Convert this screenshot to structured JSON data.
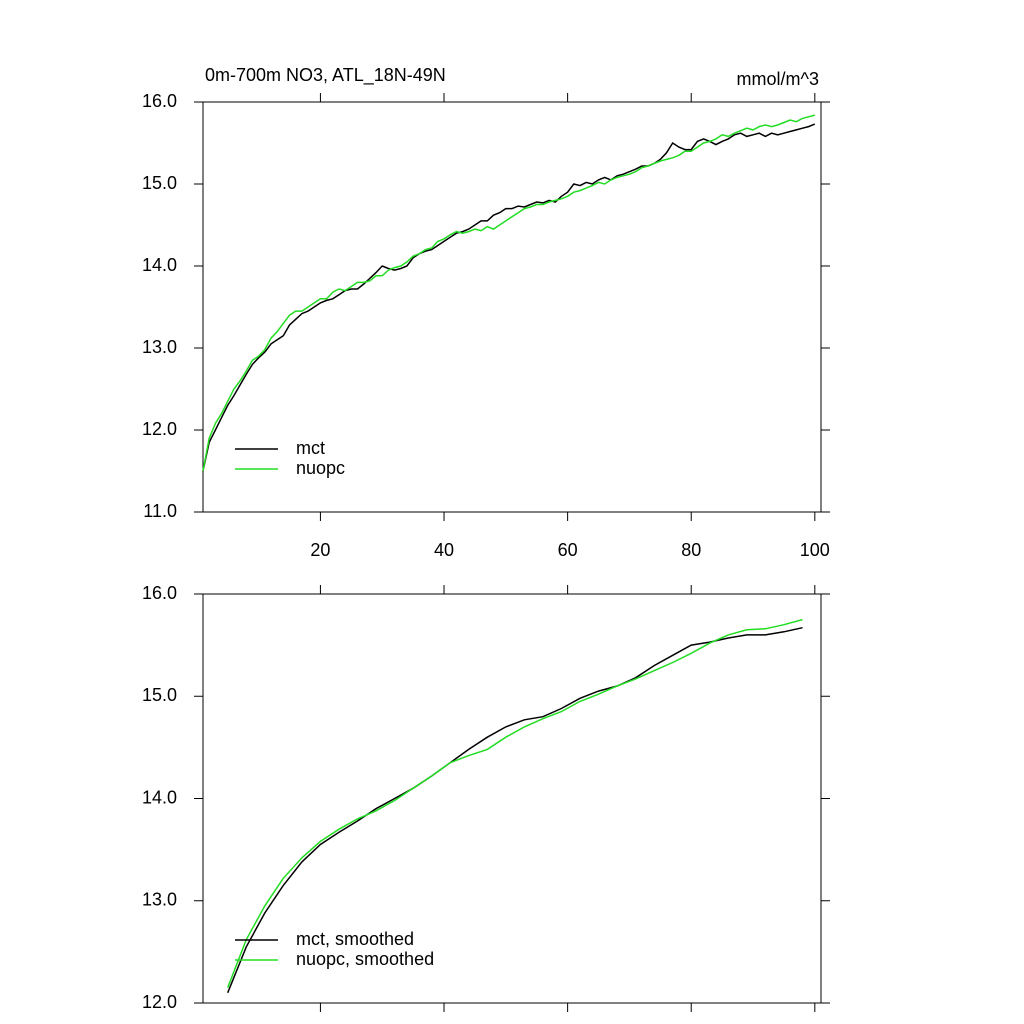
{
  "chart_data": [
    {
      "type": "line",
      "title": "0m-700m NO3, ATL_18N-49N",
      "units": "mmol/m^3",
      "x": [
        1,
        2,
        3,
        4,
        5,
        6,
        7,
        8,
        9,
        10,
        11,
        12,
        13,
        14,
        15,
        16,
        17,
        18,
        19,
        20,
        21,
        22,
        23,
        24,
        25,
        26,
        27,
        28,
        29,
        30,
        31,
        32,
        33,
        34,
        35,
        36,
        37,
        38,
        39,
        40,
        41,
        42,
        43,
        44,
        45,
        46,
        47,
        48,
        49,
        50,
        51,
        52,
        53,
        54,
        55,
        56,
        57,
        58,
        59,
        60,
        61,
        62,
        63,
        64,
        65,
        66,
        67,
        68,
        69,
        70,
        71,
        72,
        73,
        74,
        75,
        76,
        77,
        78,
        79,
        80,
        81,
        82,
        83,
        84,
        85,
        86,
        87,
        88,
        89,
        90,
        91,
        92,
        93,
        94,
        95,
        96,
        97,
        98,
        99,
        100
      ],
      "series": [
        {
          "name": "mct",
          "color": "#000000",
          "values": [
            11.5,
            11.85,
            12.0,
            12.15,
            12.3,
            12.42,
            12.55,
            12.68,
            12.8,
            12.88,
            12.95,
            13.05,
            13.1,
            13.15,
            13.28,
            13.35,
            13.42,
            13.45,
            13.5,
            13.55,
            13.58,
            13.6,
            13.65,
            13.7,
            13.72,
            13.72,
            13.78,
            13.85,
            13.92,
            14.0,
            13.97,
            13.95,
            13.97,
            14.0,
            14.1,
            14.15,
            14.18,
            14.2,
            14.25,
            14.3,
            14.35,
            14.4,
            14.42,
            14.45,
            14.5,
            14.55,
            14.55,
            14.62,
            14.65,
            14.7,
            14.7,
            14.73,
            14.72,
            14.75,
            14.78,
            14.77,
            14.8,
            14.78,
            14.85,
            14.9,
            15.0,
            14.98,
            15.02,
            15.0,
            15.05,
            15.08,
            15.05,
            15.1,
            15.12,
            15.15,
            15.18,
            15.22,
            15.22,
            15.25,
            15.3,
            15.38,
            15.5,
            15.45,
            15.42,
            15.42,
            15.52,
            15.55,
            15.52,
            15.48,
            15.52,
            15.55,
            15.6,
            15.62,
            15.58,
            15.6,
            15.62,
            15.58,
            15.62,
            15.6,
            15.62,
            15.64,
            15.66,
            15.68,
            15.7,
            15.73
          ]
        },
        {
          "name": "nuopc",
          "color": "#22dd22",
          "values": [
            11.5,
            11.9,
            12.08,
            12.2,
            12.35,
            12.5,
            12.6,
            12.72,
            12.85,
            12.9,
            12.98,
            13.12,
            13.2,
            13.3,
            13.4,
            13.45,
            13.45,
            13.5,
            13.55,
            13.6,
            13.6,
            13.68,
            13.72,
            13.7,
            13.75,
            13.8,
            13.8,
            13.82,
            13.88,
            13.88,
            13.95,
            13.98,
            14.0,
            14.05,
            14.12,
            14.15,
            14.2,
            14.22,
            14.3,
            14.33,
            14.38,
            14.42,
            14.4,
            14.42,
            14.45,
            14.43,
            14.48,
            14.45,
            14.5,
            14.55,
            14.6,
            14.65,
            14.7,
            14.72,
            14.75,
            14.75,
            14.78,
            14.8,
            14.82,
            14.85,
            14.9,
            14.92,
            14.95,
            14.98,
            15.02,
            15.0,
            15.05,
            15.08,
            15.1,
            15.12,
            15.15,
            15.2,
            15.22,
            15.25,
            15.28,
            15.3,
            15.32,
            15.35,
            15.4,
            15.4,
            15.45,
            15.5,
            15.52,
            15.55,
            15.6,
            15.58,
            15.62,
            15.65,
            15.68,
            15.66,
            15.7,
            15.72,
            15.7,
            15.72,
            15.75,
            15.78,
            15.76,
            15.8,
            15.82,
            15.84
          ]
        }
      ],
      "xlim": [
        1,
        101
      ],
      "xticks": [
        20,
        40,
        60,
        80,
        100
      ],
      "xticklabels": true,
      "ylim": [
        11,
        16
      ],
      "yticks": [
        {
          "value": 11,
          "label": "11.0"
        },
        {
          "value": 12,
          "label": "12.0"
        },
        {
          "value": 13,
          "label": "13.0"
        },
        {
          "value": 14,
          "label": "14.0"
        },
        {
          "value": 15,
          "label": "15.0"
        },
        {
          "value": 16,
          "label": "16.0"
        }
      ],
      "legend": "lower left"
    },
    {
      "type": "line",
      "x": [
        5,
        8,
        11,
        14,
        17,
        20,
        23,
        26,
        29,
        32,
        35,
        38,
        41,
        44,
        47,
        50,
        53,
        56,
        59,
        62,
        65,
        68,
        71,
        74,
        77,
        80,
        83,
        86,
        89,
        92,
        95,
        98
      ],
      "series": [
        {
          "name": "mct, smoothed",
          "color": "#000000",
          "values": [
            12.1,
            12.55,
            12.88,
            13.15,
            13.38,
            13.55,
            13.67,
            13.78,
            13.9,
            14.0,
            14.1,
            14.22,
            14.35,
            14.48,
            14.6,
            14.7,
            14.77,
            14.8,
            14.88,
            14.98,
            15.05,
            15.1,
            15.18,
            15.3,
            15.4,
            15.5,
            15.53,
            15.57,
            15.6,
            15.6,
            15.63,
            15.67
          ]
        },
        {
          "name": "nuopc, smoothed",
          "color": "#22dd22",
          "values": [
            12.15,
            12.62,
            12.95,
            13.22,
            13.42,
            13.58,
            13.7,
            13.8,
            13.88,
            13.98,
            14.1,
            14.22,
            14.35,
            14.42,
            14.48,
            14.6,
            14.7,
            14.78,
            14.85,
            14.95,
            15.02,
            15.1,
            15.17,
            15.25,
            15.33,
            15.42,
            15.52,
            15.6,
            15.65,
            15.66,
            15.7,
            15.75
          ]
        }
      ],
      "xlim": [
        1,
        101
      ],
      "xticks": [
        20,
        40,
        60,
        80,
        100
      ],
      "xticklabels": false,
      "ylim": [
        12,
        16
      ],
      "yticks": [
        {
          "value": 12,
          "label": "12.0"
        },
        {
          "value": 13,
          "label": "13.0"
        },
        {
          "value": 14,
          "label": "14.0"
        },
        {
          "value": 15,
          "label": "15.0"
        },
        {
          "value": 16,
          "label": "16.0"
        }
      ],
      "legend": "lower left"
    }
  ]
}
